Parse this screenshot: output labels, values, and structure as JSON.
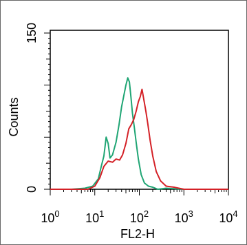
{
  "chart_data": {
    "type": "line",
    "xlabel": "FL2-H",
    "ylabel": "Counts",
    "x_scale": "log",
    "xlim": [
      1,
      10000
    ],
    "ylim": [
      0,
      150
    ],
    "x_ticks": [
      {
        "value": 1,
        "base": "10",
        "exp": "0"
      },
      {
        "value": 10,
        "base": "10",
        "exp": "1"
      },
      {
        "value": 100,
        "base": "10",
        "exp": "2"
      },
      {
        "value": 1000,
        "base": "10",
        "exp": "3"
      },
      {
        "value": 10000,
        "base": "10",
        "exp": "4"
      }
    ],
    "y_ticks": [
      {
        "value": 0,
        "label": "0"
      },
      {
        "value": 150,
        "label": "150"
      }
    ],
    "grid": false,
    "legend": "none",
    "series": [
      {
        "color": "#1fa574",
        "x": [
          1,
          3,
          6,
          9,
          12,
          14,
          16,
          18,
          20,
          22,
          25,
          30,
          35,
          40,
          45,
          50,
          55,
          60,
          65,
          70,
          78,
          85,
          95,
          110,
          130,
          160,
          200,
          260,
          400,
          1000,
          10000
        ],
        "y": [
          0,
          0,
          1,
          3,
          10,
          22,
          32,
          50,
          44,
          30,
          33,
          45,
          62,
          79,
          90,
          100,
          107,
          103,
          88,
          73,
          58,
          45,
          29,
          14,
          6,
          3,
          2,
          0,
          1,
          0,
          0
        ]
      },
      {
        "color": "#d42127",
        "x": [
          1,
          4,
          7,
          10,
          13,
          16,
          20,
          25,
          30,
          36,
          42,
          50,
          58,
          66,
          75,
          85,
          95,
          105,
          115,
          125,
          140,
          155,
          175,
          200,
          240,
          300,
          400,
          600,
          1000,
          10000
        ],
        "y": [
          0,
          0,
          0,
          3,
          11,
          22,
          27,
          26,
          29,
          28,
          33,
          44,
          58,
          62,
          67,
          75,
          84,
          89,
          96,
          87,
          75,
          63,
          47,
          32,
          17,
          8,
          3,
          2,
          0,
          0
        ]
      }
    ]
  }
}
